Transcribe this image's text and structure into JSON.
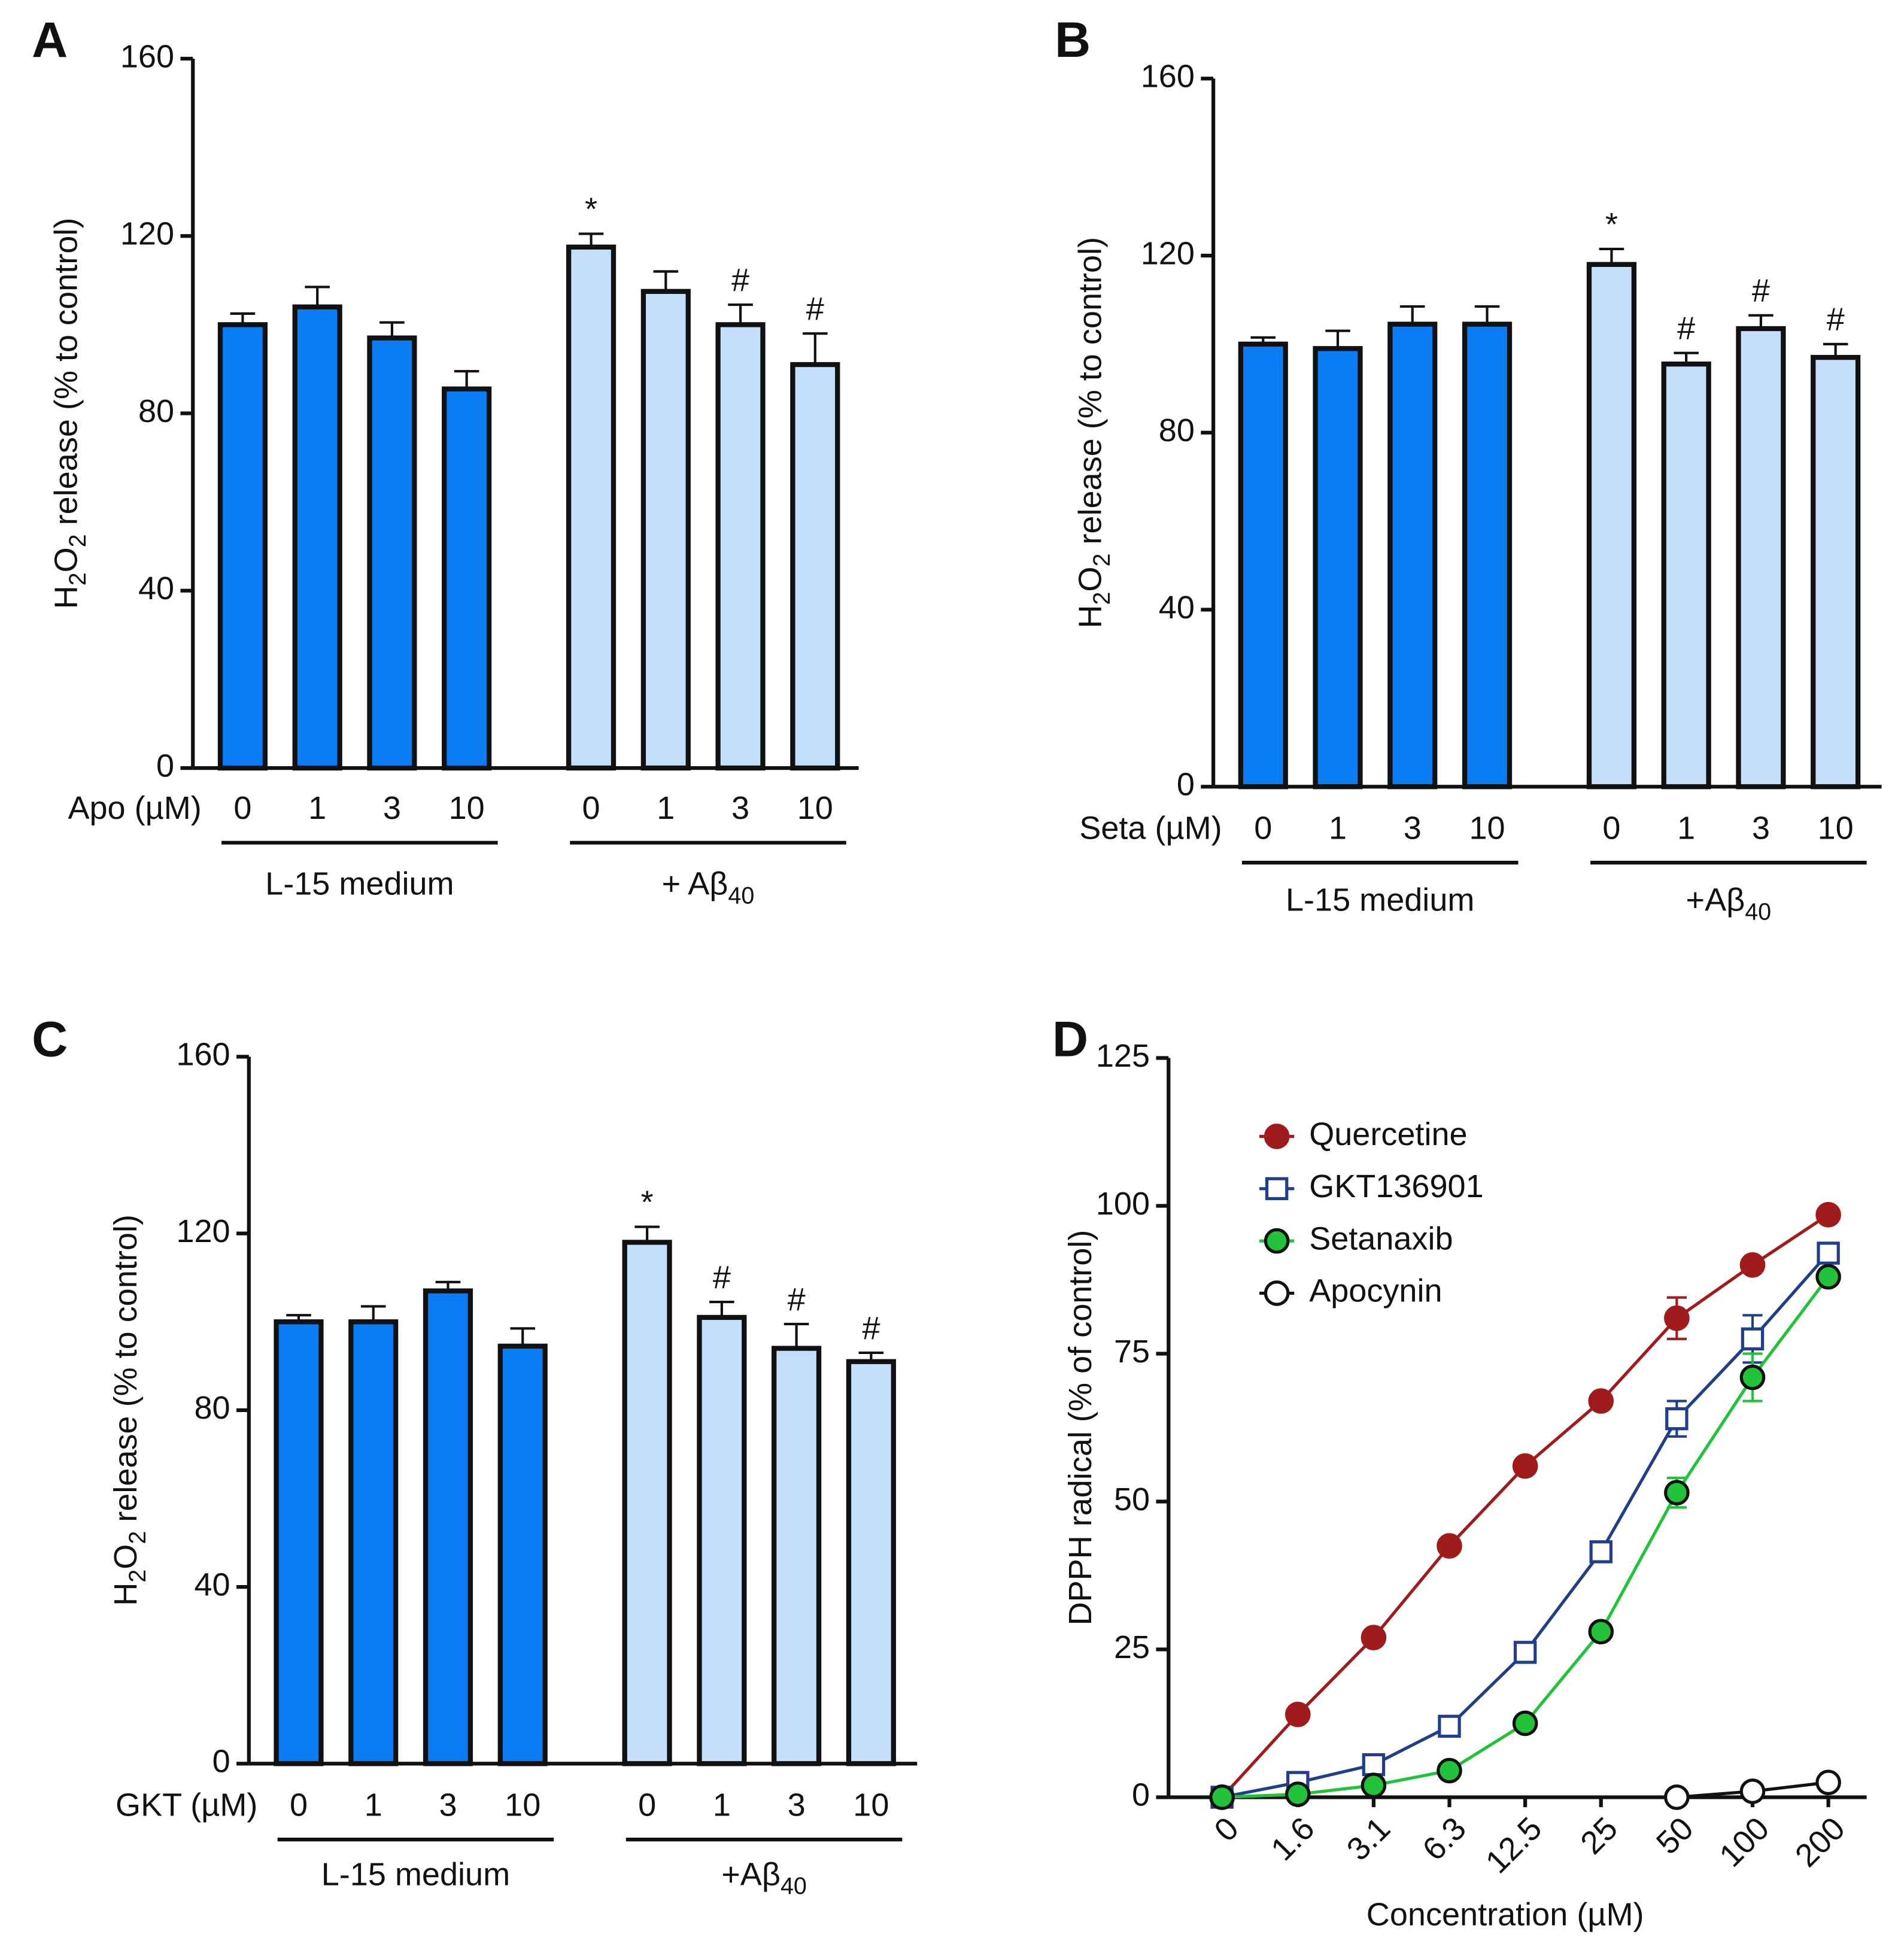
{
  "chart_data": [
    {
      "type": "bar",
      "panel": "A",
      "ylabel": [
        {
          "text": "H"
        },
        {
          "text": "2",
          "sub": true
        },
        {
          "text": "O"
        },
        {
          "text": "2",
          "sub": true
        },
        {
          "text": " release (% to control)"
        }
      ],
      "xlabel": "Apo (µM)",
      "ylim": [
        0,
        160
      ],
      "yticks": [
        0,
        40,
        80,
        120,
        160
      ],
      "groups": [
        {
          "name": [
            {
              "text": "L-15 medium"
            }
          ],
          "color": "#0a7cf5",
          "categories": [
            "0",
            "1",
            "3",
            "10"
          ],
          "values": [
            100,
            104,
            97,
            85.5
          ],
          "errors": [
            2.5,
            4.5,
            3.5,
            4
          ]
        },
        {
          "name": [
            {
              "text": "+ Aβ"
            },
            {
              "text": "40",
              "sub": true
            }
          ],
          "color": "#c3dffb",
          "categories": [
            "0",
            "1",
            "3",
            "10"
          ],
          "values": [
            117.5,
            107.5,
            100,
            91
          ],
          "errors": [
            3,
            4.5,
            4.5,
            7
          ],
          "annotations": [
            "*",
            null,
            "#",
            "#"
          ]
        }
      ]
    },
    {
      "type": "bar",
      "panel": "B",
      "ylabel": [
        {
          "text": "H"
        },
        {
          "text": "2",
          "sub": true
        },
        {
          "text": "O"
        },
        {
          "text": "2",
          "sub": true
        },
        {
          "text": " release (% to control)"
        }
      ],
      "xlabel": "Seta (µM)",
      "ylim": [
        0,
        160
      ],
      "yticks": [
        0,
        40,
        80,
        120,
        160
      ],
      "groups": [
        {
          "name": [
            {
              "text": "L-15 medium"
            }
          ],
          "color": "#0a7cf5",
          "categories": [
            "0",
            "1",
            "3",
            "10"
          ],
          "values": [
            100,
            99,
            104.5,
            104.5
          ],
          "errors": [
            1.5,
            4,
            4,
            4
          ]
        },
        {
          "name": [
            {
              "text": "+Aβ"
            },
            {
              "text": "40",
              "sub": true
            }
          ],
          "color": "#c3dffb",
          "categories": [
            "0",
            "1",
            "3",
            "10"
          ],
          "values": [
            118,
            95.5,
            103.5,
            97
          ],
          "errors": [
            3.5,
            2.5,
            3,
            3
          ],
          "annotations": [
            "*",
            "#",
            "#",
            "#"
          ]
        }
      ]
    },
    {
      "type": "bar",
      "panel": "C",
      "ylabel": [
        {
          "text": "H"
        },
        {
          "text": "2",
          "sub": true
        },
        {
          "text": "O"
        },
        {
          "text": "2",
          "sub": true
        },
        {
          "text": " release (% to control)"
        }
      ],
      "xlabel": "GKT (µM)",
      "ylim": [
        0,
        160
      ],
      "yticks": [
        0,
        40,
        80,
        120,
        160
      ],
      "groups": [
        {
          "name": [
            {
              "text": "L-15 medium"
            }
          ],
          "color": "#0a7cf5",
          "categories": [
            "0",
            "1",
            "3",
            "10"
          ],
          "values": [
            100,
            100,
            107,
            94.5
          ],
          "errors": [
            1.5,
            3.5,
            2,
            4
          ]
        },
        {
          "name": [
            {
              "text": "+Aβ"
            },
            {
              "text": "40",
              "sub": true
            }
          ],
          "color": "#c3dffb",
          "categories": [
            "0",
            "1",
            "3",
            "10"
          ],
          "values": [
            118,
            101,
            94,
            91
          ],
          "errors": [
            3.5,
            3.5,
            5.5,
            2
          ],
          "annotations": [
            "*",
            "#",
            "#",
            "#"
          ]
        }
      ]
    },
    {
      "type": "line",
      "panel": "D",
      "ylabel": "DPPH radical (% of control)",
      "xlabel": "Concentration (µM)",
      "categories": [
        "0",
        "1.6",
        "3.1",
        "6.3",
        "12.5",
        "25",
        "50",
        "100",
        "200"
      ],
      "ylim": [
        0,
        125
      ],
      "yticks": [
        0,
        25,
        50,
        75,
        100,
        125
      ],
      "legend": "upper left",
      "series": [
        {
          "name": "Quercetine",
          "color": "#a01c1c",
          "marker": "circle",
          "marker_fill": "#a01c1c",
          "values": [
            0,
            14,
            27,
            42.5,
            56,
            67,
            81,
            90,
            98.5
          ],
          "errors": [
            null,
            null,
            null,
            null,
            null,
            null,
            3.5,
            null,
            null
          ]
        },
        {
          "name": "GKT136901",
          "color": "#1f3f8a",
          "marker": "square",
          "marker_fill": "#ffffff",
          "values": [
            0,
            2.5,
            5.5,
            12,
            24.5,
            41.5,
            64,
            77.5,
            92
          ],
          "errors": [
            null,
            null,
            null,
            null,
            null,
            null,
            3,
            4,
            null
          ]
        },
        {
          "name": "Setanaxib",
          "color": "#22c33a",
          "marker": "circle",
          "marker_fill": "#22c33a",
          "marker_edge": "#111111",
          "values": [
            0,
            0.5,
            2,
            4.5,
            12.5,
            28,
            51.5,
            71,
            88
          ],
          "errors": [
            null,
            null,
            null,
            null,
            null,
            null,
            2.5,
            4,
            null
          ]
        },
        {
          "name": "Apocynin",
          "color": "#111111",
          "marker": "circle",
          "marker_fill": "#ffffff",
          "values": [
            null,
            null,
            null,
            null,
            null,
            null,
            0,
            1,
            2.5
          ],
          "errors": [
            null,
            null,
            null,
            null,
            null,
            null,
            null,
            null,
            null
          ]
        }
      ]
    }
  ]
}
